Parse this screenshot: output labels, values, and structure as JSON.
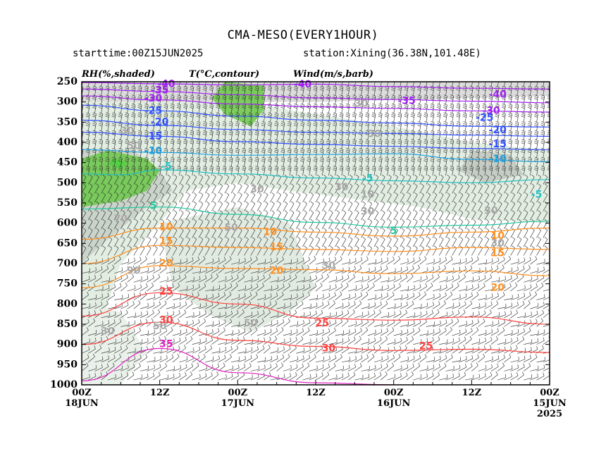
{
  "chart_data": {
    "type": "time-height cross section",
    "title": "CMA-MESO(EVERY1HOUR)",
    "starttime": "starttime:00Z15JUN2025",
    "station": "station:Xining(36.38N,101.48E)",
    "legend_rh": "RH(%,shaded)",
    "legend_t": "T(°C,contour)",
    "legend_wind": "Wind(m/s,barb)",
    "y_axis": {
      "ticks": [
        250,
        300,
        350,
        400,
        450,
        500,
        550,
        600,
        650,
        700,
        750,
        800,
        850,
        900,
        950,
        1000
      ],
      "reversed": true
    },
    "x_axis": {
      "reversed": true,
      "ticks": [
        {
          "hour": 72,
          "line1": "00Z",
          "line2": "18JUN",
          "line3": ""
        },
        {
          "hour": 60,
          "line1": "12Z",
          "line2": "",
          "line3": ""
        },
        {
          "hour": 48,
          "line1": "00Z",
          "line2": "17JUN",
          "line3": ""
        },
        {
          "hour": 36,
          "line1": "12Z",
          "line2": "",
          "line3": ""
        },
        {
          "hour": 24,
          "line1": "00Z",
          "line2": "16JUN",
          "line3": ""
        },
        {
          "hour": 12,
          "line1": "12Z",
          "line2": "",
          "line3": ""
        },
        {
          "hour": 0,
          "line1": "00Z",
          "line2": "15JUN",
          "line3": "2025"
        }
      ]
    },
    "temperature_contours": [
      {
        "level": -40,
        "color": "#a020f0",
        "points": [
          [
            72,
            252
          ],
          [
            60,
            255
          ],
          [
            48,
            258
          ],
          [
            36,
            256
          ],
          [
            24,
            262
          ],
          [
            12,
            266
          ],
          [
            0,
            268
          ]
        ]
      },
      {
        "level": -35,
        "color": "#a020f0",
        "points": [
          [
            72,
            268
          ],
          [
            60,
            274
          ],
          [
            48,
            282
          ],
          [
            36,
            290
          ],
          [
            24,
            294
          ],
          [
            12,
            298
          ],
          [
            0,
            302
          ]
        ]
      },
      {
        "level": -30,
        "color": "#a020f0",
        "points": [
          [
            72,
            285
          ],
          [
            60,
            295
          ],
          [
            48,
            305
          ],
          [
            36,
            312
          ],
          [
            24,
            316
          ],
          [
            12,
            322
          ],
          [
            0,
            325
          ]
        ]
      },
      {
        "level": -25,
        "color": "#3050ff",
        "points": [
          [
            72,
            308
          ],
          [
            60,
            322
          ],
          [
            48,
            335
          ],
          [
            36,
            345
          ],
          [
            24,
            352
          ],
          [
            12,
            360
          ],
          [
            0,
            362
          ]
        ]
      },
      {
        "level": -20,
        "color": "#3050ff",
        "points": [
          [
            72,
            345
          ],
          [
            60,
            358
          ],
          [
            48,
            368
          ],
          [
            36,
            375
          ],
          [
            24,
            378
          ],
          [
            12,
            382
          ],
          [
            0,
            385
          ]
        ]
      },
      {
        "level": -15,
        "color": "#3050ff",
        "points": [
          [
            72,
            375
          ],
          [
            60,
            385
          ],
          [
            48,
            398
          ],
          [
            36,
            405
          ],
          [
            24,
            410
          ],
          [
            12,
            415
          ],
          [
            0,
            418
          ]
        ]
      },
      {
        "level": -10,
        "color": "#1ea0e0",
        "points": [
          [
            72,
            418
          ],
          [
            60,
            425
          ],
          [
            48,
            432
          ],
          [
            36,
            430
          ],
          [
            24,
            428
          ],
          [
            12,
            442
          ],
          [
            0,
            448
          ]
        ]
      },
      {
        "level": -5,
        "color": "#20c0c0",
        "points": [
          [
            72,
            478
          ],
          [
            66,
            480
          ],
          [
            60,
            468
          ],
          [
            48,
            478
          ],
          [
            36,
            488
          ],
          [
            24,
            495
          ],
          [
            12,
            500
          ],
          [
            0,
            492
          ]
        ]
      },
      {
        "level": 5,
        "color": "#20c8a0",
        "points": [
          [
            72,
            565
          ],
          [
            60,
            560
          ],
          [
            48,
            578
          ],
          [
            36,
            598
          ],
          [
            24,
            610
          ],
          [
            12,
            605
          ],
          [
            0,
            595
          ]
        ]
      },
      {
        "level": 10,
        "color": "#ff9020",
        "points": [
          [
            72,
            640
          ],
          [
            60,
            612
          ],
          [
            48,
            612
          ],
          [
            36,
            622
          ],
          [
            24,
            632
          ],
          [
            12,
            622
          ],
          [
            0,
            612
          ]
        ]
      },
      {
        "level": 15,
        "color": "#ff9020",
        "points": [
          [
            72,
            700
          ],
          [
            60,
            655
          ],
          [
            48,
            660
          ],
          [
            36,
            665
          ],
          [
            24,
            670
          ],
          [
            12,
            660
          ],
          [
            0,
            665
          ]
        ]
      },
      {
        "level": 20,
        "color": "#ff9020",
        "points": [
          [
            72,
            760
          ],
          [
            60,
            705
          ],
          [
            48,
            712
          ],
          [
            36,
            715
          ],
          [
            24,
            725
          ],
          [
            12,
            718
          ],
          [
            0,
            730
          ]
        ]
      },
      {
        "level": 25,
        "color": "#ff4040",
        "points": [
          [
            72,
            830
          ],
          [
            60,
            772
          ],
          [
            48,
            800
          ],
          [
            36,
            835
          ],
          [
            24,
            840
          ],
          [
            12,
            832
          ],
          [
            0,
            850
          ]
        ]
      },
      {
        "level": 30,
        "color": "#ff4040",
        "points": [
          [
            72,
            900
          ],
          [
            60,
            845
          ],
          [
            48,
            890
          ],
          [
            36,
            905
          ],
          [
            24,
            915
          ],
          [
            12,
            912
          ],
          [
            0,
            920
          ]
        ]
      },
      {
        "level": 35,
        "color": "#e020c0",
        "points": [
          [
            72,
            990
          ],
          [
            60,
            910
          ],
          [
            48,
            970
          ],
          [
            36,
            995
          ],
          [
            24,
            1000
          ]
        ]
      }
    ],
    "labels": [
      {
        "text": "-40",
        "hour": 59,
        "p": 256,
        "color": "#a020f0"
      },
      {
        "text": "-40",
        "hour": 38,
        "p": 257,
        "color": "#a020f0"
      },
      {
        "text": "-35",
        "hour": 60,
        "p": 272,
        "color": "#a020f0"
      },
      {
        "text": "-30",
        "hour": 61,
        "p": 292,
        "color": "#a020f0"
      },
      {
        "text": "-35",
        "hour": 22,
        "p": 298,
        "color": "#a020f0"
      },
      {
        "text": "-40",
        "hour": 8,
        "p": 282,
        "color": "#a020f0"
      },
      {
        "text": "-30",
        "hour": 9,
        "p": 322,
        "color": "#a020f0"
      },
      {
        "text": "-25",
        "hour": 61,
        "p": 322,
        "color": "#3050ff"
      },
      {
        "text": "-25",
        "hour": 10,
        "p": 340,
        "color": "#3050ff"
      },
      {
        "text": "-20",
        "hour": 60,
        "p": 350,
        "color": "#3050ff"
      },
      {
        "text": "-20",
        "hour": 8,
        "p": 370,
        "color": "#3050ff"
      },
      {
        "text": "-15",
        "hour": 61,
        "p": 385,
        "color": "#3050ff"
      },
      {
        "text": "-15",
        "hour": 8,
        "p": 405,
        "color": "#3050ff"
      },
      {
        "text": "-10",
        "hour": 61,
        "p": 422,
        "color": "#1ea0e0"
      },
      {
        "text": "-10",
        "hour": 8,
        "p": 442,
        "color": "#1ea0e0"
      },
      {
        "text": "-5",
        "hour": 59,
        "p": 460,
        "color": "#20c0c0"
      },
      {
        "text": "-5",
        "hour": 28,
        "p": 490,
        "color": "#20c0c0"
      },
      {
        "text": "-5",
        "hour": 2,
        "p": 530,
        "color": "#20c0c0"
      },
      {
        "text": "5",
        "hour": 61,
        "p": 558,
        "color": "#20c8a0"
      },
      {
        "text": "5",
        "hour": 24,
        "p": 620,
        "color": "#20c8a0"
      },
      {
        "text": "10",
        "hour": 59,
        "p": 610,
        "color": "#ff9020"
      },
      {
        "text": "10",
        "hour": 43,
        "p": 622,
        "color": "#ff9020"
      },
      {
        "text": "10",
        "hour": 8,
        "p": 632,
        "color": "#ff9020"
      },
      {
        "text": "15",
        "hour": 59,
        "p": 645,
        "color": "#ff9020"
      },
      {
        "text": "15",
        "hour": 42,
        "p": 660,
        "color": "#ff9020"
      },
      {
        "text": "15",
        "hour": 8,
        "p": 675,
        "color": "#ff9020"
      },
      {
        "text": "20",
        "hour": 59,
        "p": 700,
        "color": "#ff9020"
      },
      {
        "text": "20",
        "hour": 42,
        "p": 718,
        "color": "#ff9020"
      },
      {
        "text": "20",
        "hour": 8,
        "p": 760,
        "color": "#ff9020"
      },
      {
        "text": "25",
        "hour": 59,
        "p": 770,
        "color": "#ff4040"
      },
      {
        "text": "25",
        "hour": 35,
        "p": 848,
        "color": "#ff4040"
      },
      {
        "text": "25",
        "hour": 19,
        "p": 905,
        "color": "#ff4040"
      },
      {
        "text": "30",
        "hour": 59,
        "p": 840,
        "color": "#ff4040"
      },
      {
        "text": "30",
        "hour": 34,
        "p": 910,
        "color": "#ff4040"
      },
      {
        "text": "35",
        "hour": 59,
        "p": 900,
        "color": "#e020c0"
      }
    ],
    "rh_labels": [
      {
        "text": "30",
        "hour": 65,
        "p": 372
      },
      {
        "text": "50",
        "hour": 64,
        "p": 410
      },
      {
        "text": "70",
        "hour": 66,
        "p": 590
      },
      {
        "text": "90",
        "hour": 64,
        "p": 718
      },
      {
        "text": "30",
        "hour": 68,
        "p": 868
      },
      {
        "text": "50",
        "hour": 60,
        "p": 855
      },
      {
        "text": "50",
        "hour": 49,
        "p": 612
      },
      {
        "text": "50",
        "hour": 46,
        "p": 848
      },
      {
        "text": "30",
        "hour": 45,
        "p": 517
      },
      {
        "text": "30",
        "hour": 34,
        "p": 706
      },
      {
        "text": "30",
        "hour": 32,
        "p": 512
      },
      {
        "text": "30",
        "hour": 28,
        "p": 572
      },
      {
        "text": "10",
        "hour": 28,
        "p": 530
      },
      {
        "text": "30",
        "hour": 27,
        "p": 380
      },
      {
        "text": "30",
        "hour": 29,
        "p": 305
      },
      {
        "text": "30",
        "hour": 9,
        "p": 570
      },
      {
        "text": "30",
        "hour": 8,
        "p": 650
      }
    ]
  }
}
